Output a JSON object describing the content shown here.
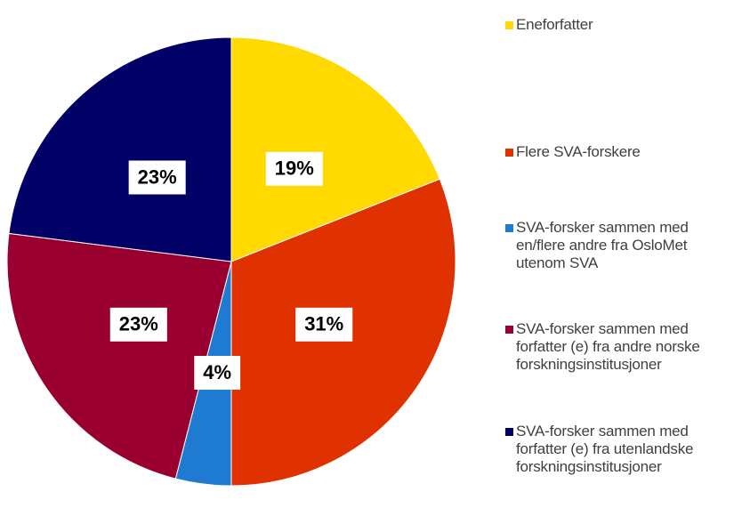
{
  "chart_data": {
    "type": "pie",
    "categories": [
      "Eneforfatter",
      "Flere SVA-forskere",
      "SVA-forsker sammen med en/flere andre fra OsloMet utenom SVA",
      "SVA-forsker sammen med forfatter (e) fra andre norske forskningsinstitusjoner",
      "SVA-forsker sammen med forfatter (e) fra utenlandske forskningsinstitusjoner"
    ],
    "values": [
      19,
      31,
      4,
      23,
      23
    ],
    "value_labels": [
      "19%",
      "31%",
      "4%",
      "23%",
      "23%"
    ],
    "colors": [
      "#FFD900",
      "#E03200",
      "#1F7AD1",
      "#990030",
      "#000066"
    ]
  }
}
